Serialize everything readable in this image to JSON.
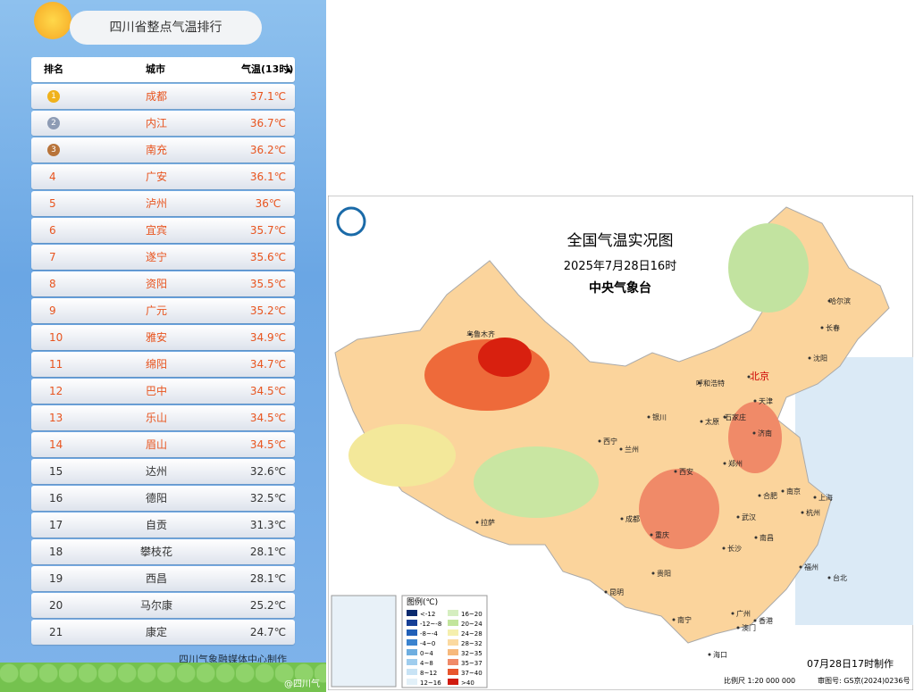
{
  "left": {
    "title": "四川省整点气温排行",
    "table": {
      "headers": [
        "排名",
        "城市",
        "气温(13时)"
      ],
      "rows": [
        [
          "1",
          "成都",
          "37.1℃"
        ],
        [
          "2",
          "内江",
          "36.7℃"
        ],
        [
          "3",
          "南充",
          "36.2℃"
        ],
        [
          "4",
          "广安",
          "36.1℃"
        ],
        [
          "5",
          "泸州",
          "36℃"
        ],
        [
          "6",
          "宜宾",
          "35.7℃"
        ],
        [
          "7",
          "遂宁",
          "35.6℃"
        ],
        [
          "8",
          "资阳",
          "35.5℃"
        ],
        [
          "9",
          "广元",
          "35.2℃"
        ],
        [
          "10",
          "雅安",
          "34.9℃"
        ],
        [
          "11",
          "绵阳",
          "34.7℃"
        ],
        [
          "12",
          "巴中",
          "34.5℃"
        ],
        [
          "13",
          "乐山",
          "34.5℃"
        ],
        [
          "14",
          "眉山",
          "34.5℃"
        ],
        [
          "15",
          "达州",
          "32.6℃"
        ],
        [
          "16",
          "德阳",
          "32.5℃"
        ],
        [
          "17",
          "自贡",
          "31.3℃"
        ],
        [
          "18",
          "攀枝花",
          "28.1℃"
        ],
        [
          "19",
          "西昌",
          "28.1℃"
        ],
        [
          "20",
          "马尔康",
          "25.2℃"
        ],
        [
          "21",
          "康定",
          "24.7℃"
        ]
      ]
    },
    "footer": "四川气象融媒体中心制作",
    "watermark": "@四川气象"
  },
  "map": {
    "title": "全国气温实况图",
    "datetime": "2025年7月28日16时",
    "agency": "中央气象台",
    "cities": [
      "乌鲁木齐",
      "哈尔滨",
      "长春",
      "沈阳",
      "呼和浩特",
      "北京",
      "天津",
      "石家庄",
      "太原",
      "济南",
      "银川",
      "西宁",
      "兰州",
      "郑州",
      "西安",
      "合肥",
      "南京",
      "上海",
      "武汉",
      "杭州",
      "成都",
      "重庆",
      "拉萨",
      "南昌",
      "长沙",
      "贵阳",
      "福州",
      "台北",
      "昆明",
      "广州",
      "香港",
      "澳门",
      "南宁",
      "海口"
    ],
    "legend": {
      "title": "图例(℃)",
      "items": [
        "<-12",
        "-12~-8",
        "-8~-4",
        "-4~0",
        "0~4",
        "4~8",
        "8~12",
        "12~16",
        "16~20",
        "20~24",
        "24~28",
        "28~32",
        "32~35",
        "35~37",
        "37~40",
        ">40"
      ]
    },
    "made_time": "07月28日17时制作",
    "scale": "比例尺 1:20 000 000",
    "approval": "审图号: GS京(2024)0236号"
  }
}
